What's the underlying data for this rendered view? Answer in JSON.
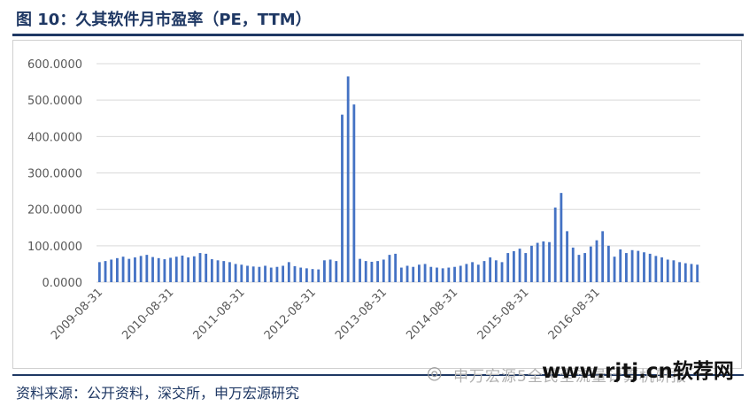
{
  "header": {
    "title": "图 10：久其软件月市盈率（PE，TTM）"
  },
  "footer": {
    "source": "资料来源：公开资料，深交所，申万宏源研究"
  },
  "watermark": {
    "icon": "wechat-icon",
    "subtitle": "申万宏源5全民全流量计算机研报",
    "site": "www.rjtj.cn软荐网"
  },
  "colors": {
    "bar": "#4472c4",
    "title": "#1f3864",
    "grid": "#d9d9d9",
    "axis_text": "#595959"
  },
  "chart_data": {
    "type": "bar",
    "title": "",
    "xlabel": "",
    "ylabel": "",
    "ylim": [
      0,
      600
    ],
    "yticks": [
      "0.0000",
      "100.0000",
      "200.0000",
      "300.0000",
      "400.0000",
      "500.0000",
      "600.0000"
    ],
    "xticks": [
      "2009-08-31",
      "2010-08-31",
      "2011-08-31",
      "2012-08-31",
      "2013-08-31",
      "2014-08-31",
      "2015-08-31",
      "2016-08-31"
    ],
    "grid": true,
    "legend": "none",
    "frequency": "monthly",
    "series": [
      {
        "values": [
          55,
          58,
          62,
          66,
          70,
          64,
          68,
          72,
          75,
          69,
          66,
          63,
          67,
          70,
          73,
          68,
          71,
          80,
          78,
          63,
          60,
          58,
          55,
          50,
          48,
          45,
          43,
          42,
          45,
          40,
          42,
          45,
          55,
          44,
          40,
          38,
          36,
          35,
          60,
          62,
          58,
          460,
          565,
          488,
          64,
          58,
          56,
          58,
          62,
          75,
          78,
          40,
          45,
          42,
          48,
          50,
          42,
          40,
          38,
          40,
          42,
          45,
          50,
          55,
          48,
          58,
          68,
          60,
          55,
          80,
          85,
          92,
          80,
          100,
          108,
          112,
          110,
          205,
          245,
          140,
          95,
          75,
          80,
          98,
          115,
          140,
          100,
          70,
          90,
          80,
          88,
          86,
          82,
          78,
          72,
          68,
          62,
          60,
          55,
          52,
          50,
          48
        ]
      }
    ]
  }
}
